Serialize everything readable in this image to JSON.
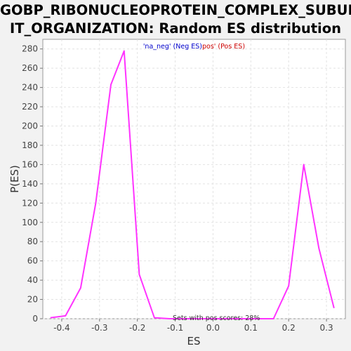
{
  "chart_data": {
    "type": "line",
    "title_lines": [
      "GOBP_RIBONUCLEOPROTEIN_COMPLEX_SUBUN",
      "IT_ORGANIZATION: Random ES distribution"
    ],
    "xlabel": "ES",
    "ylabel": "P(ES)",
    "xlim": [
      -0.45,
      0.35
    ],
    "ylim": [
      0,
      290
    ],
    "x_ticks": [
      -0.4,
      -0.3,
      -0.2,
      -0.1,
      0.0,
      0.1,
      0.2,
      0.3
    ],
    "x_tick_labels": [
      "-0.4",
      "-0.3",
      "-0.2",
      "-0.1",
      "0.0",
      "0.1",
      "0.2",
      "0.3"
    ],
    "y_ticks": [
      0,
      20,
      40,
      60,
      80,
      100,
      120,
      140,
      160,
      180,
      200,
      220,
      240,
      260,
      280
    ],
    "y_tick_labels": [
      "0",
      "20",
      "40",
      "60",
      "80",
      "100",
      "120",
      "140",
      "160",
      "180",
      "200",
      "220",
      "240",
      "260",
      "280"
    ],
    "grid": true,
    "legend": {
      "placement": "top-center",
      "neg_label": "'na_neg' (Neg ES)",
      "pos_label": "pos' (Pos ES)",
      "neg_color": "#0000cc",
      "pos_color": "#cc0000"
    },
    "annotation": "Sets with pos scores: 28%",
    "line_color": "#ff33ff",
    "series": [
      {
        "x": [
          -0.43,
          -0.39,
          -0.35,
          -0.31,
          -0.27,
          -0.235,
          -0.195,
          -0.155,
          -0.115,
          -0.075,
          -0.035,
          0.005,
          0.045,
          0.085,
          0.125,
          0.16,
          0.2,
          0.24,
          0.28,
          0.32
        ],
        "y": [
          1,
          3,
          32,
          120,
          243,
          278,
          46,
          1,
          0,
          0,
          0,
          0,
          0,
          0,
          0,
          0,
          34,
          160,
          73,
          11
        ]
      }
    ]
  }
}
